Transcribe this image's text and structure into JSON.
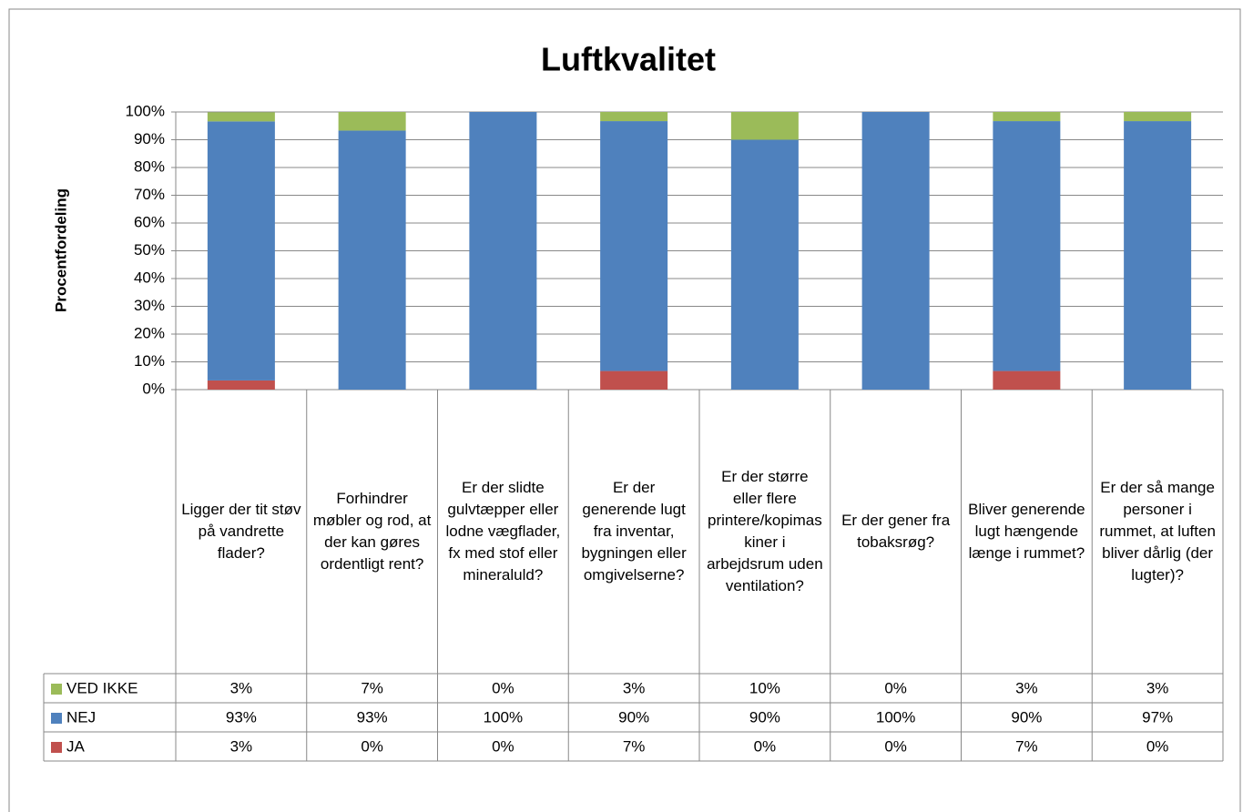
{
  "chart_data": {
    "type": "bar",
    "stacked": true,
    "title": "Luftkvalitet",
    "y_label": "Procentfordeling",
    "categories": [
      "Ligger der tit støv på vandrette flader?",
      "Forhindrer møbler og rod, at der kan gøres ordentligt rent?",
      "Er der slidte gulvtæpper eller lodne vægflader, fx med stof eller mineraluld?",
      "Er der generende lugt fra inventar, bygningen eller omgivelserne?",
      "Er der større eller flere printere/kopimaskiner i arbejdsrum uden ventilation?",
      "Er der gener fra tobaksrøg?",
      "Bliver generende lugt hængende længe i rummet?",
      "Er der så mange personer i rummet, at luften bliver dårlig (der lugter)?"
    ],
    "series": [
      {
        "name": "JA",
        "color": "#c0504d",
        "values": [
          3.3,
          0,
          0,
          6.7,
          0,
          0,
          6.7,
          0
        ],
        "value_labels": [
          "3%",
          "0%",
          "0%",
          "7%",
          "0%",
          "0%",
          "7%",
          "0%"
        ]
      },
      {
        "name": "NEJ",
        "color": "#4f81bd",
        "values": [
          93.3,
          93.3,
          100,
          90,
          90,
          100,
          90,
          96.7
        ],
        "value_labels": [
          "93%",
          "93%",
          "100%",
          "90%",
          "90%",
          "100%",
          "90%",
          "97%"
        ]
      },
      {
        "name": "VED IKKE",
        "color": "#9bbb59",
        "values": [
          3.3,
          6.7,
          0,
          3.3,
          10,
          0,
          3.3,
          3.3
        ],
        "value_labels": [
          "3%",
          "7%",
          "0%",
          "3%",
          "10%",
          "0%",
          "3%",
          "3%"
        ]
      }
    ],
    "ylim": [
      0,
      100
    ],
    "yticks": [
      {
        "value": 0,
        "label": "0%"
      },
      {
        "value": 10,
        "label": "10%"
      },
      {
        "value": 20,
        "label": "20%"
      },
      {
        "value": 30,
        "label": "30%"
      },
      {
        "value": 40,
        "label": "40%"
      },
      {
        "value": 50,
        "label": "50%"
      },
      {
        "value": 60,
        "label": "60%"
      },
      {
        "value": 70,
        "label": "70%"
      },
      {
        "value": 80,
        "label": "80%"
      },
      {
        "value": 90,
        "label": "90%"
      },
      {
        "value": 100,
        "label": "100%"
      }
    ],
    "grid": true
  }
}
